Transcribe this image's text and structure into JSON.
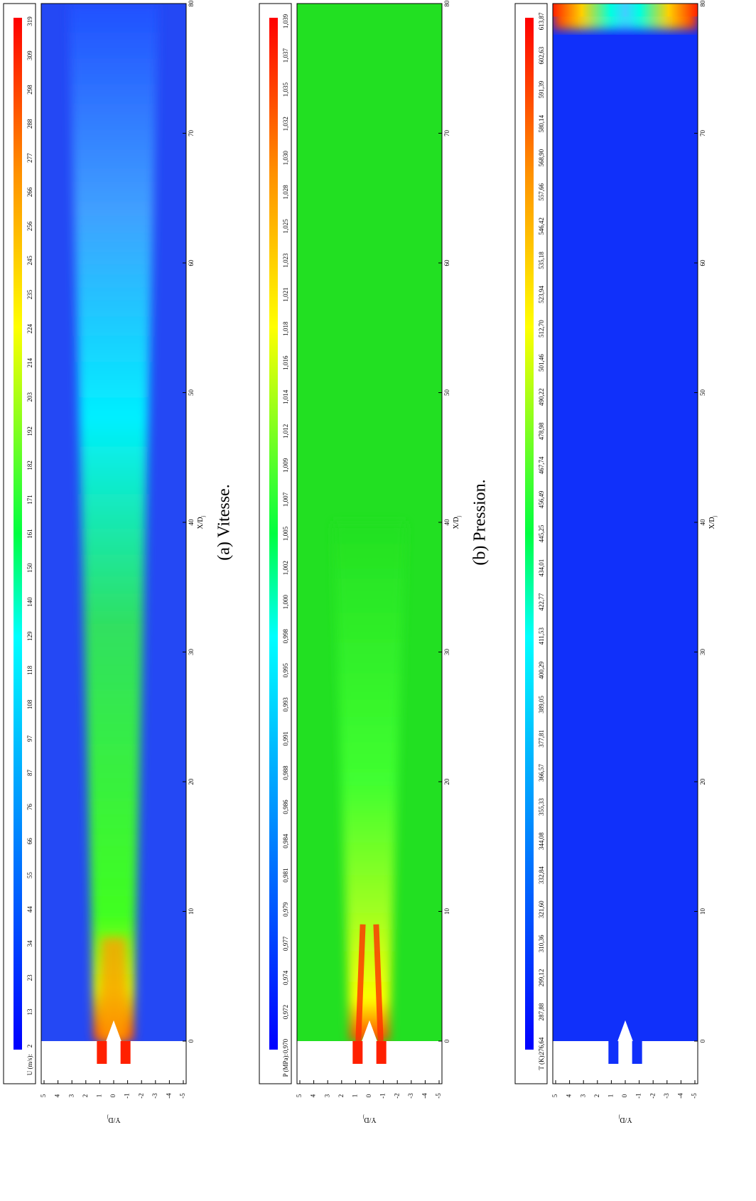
{
  "panels": [
    {
      "caption": "(a) Vitesse.",
      "colorbar_label": "U (m/s):",
      "colorbar_ticks": [
        "2",
        "13",
        "23",
        "34",
        "44",
        "55",
        "66",
        "76",
        "87",
        "97",
        "108",
        "118",
        "129",
        "140",
        "150",
        "161",
        "171",
        "182",
        "192",
        "203",
        "214",
        "224",
        "235",
        "245",
        "256",
        "266",
        "277",
        "288",
        "298",
        "309",
        "319"
      ],
      "xticks": [
        0,
        10,
        20,
        30,
        40,
        50,
        60,
        70,
        80
      ],
      "yticks": [
        5,
        4,
        3,
        2,
        1,
        0,
        -1,
        -2,
        -3,
        -4,
        -5
      ],
      "xlabel": "X/D",
      "xlabel_sub": "j",
      "ylabel": "Y/D",
      "ylabel_sub": "j"
    },
    {
      "caption": "(b) Pression.",
      "colorbar_label": "P (MPa):",
      "colorbar_ticks": [
        "0,970",
        "0,972",
        "0,974",
        "0,977",
        "0,979",
        "0,981",
        "0,984",
        "0,986",
        "0,988",
        "0,991",
        "0,993",
        "0,995",
        "0,998",
        "1,000",
        "1,002",
        "1,005",
        "1,007",
        "1,009",
        "1,012",
        "1,014",
        "1,016",
        "1,018",
        "1,021",
        "1,023",
        "1,025",
        "1,028",
        "1,030",
        "1,032",
        "1,035",
        "1,037",
        "1,039"
      ],
      "xticks": [
        0,
        10,
        20,
        30,
        40,
        50,
        60,
        70,
        80
      ],
      "yticks": [
        5,
        4,
        3,
        2,
        1,
        0,
        -1,
        -2,
        -3,
        -4,
        -5
      ],
      "xlabel": "X/D",
      "xlabel_sub": "j",
      "ylabel": "Y/D",
      "ylabel_sub": "j"
    },
    {
      "colorbar_label": "T (K):",
      "colorbar_ticks": [
        "276,64",
        "287,88",
        "299,12",
        "310,36",
        "321,60",
        "332,84",
        "344,08",
        "355,33",
        "366,57",
        "377,81",
        "389,05",
        "400,29",
        "411,53",
        "422,77",
        "434,01",
        "445,25",
        "456,49",
        "467,74",
        "478,98",
        "490,22",
        "501,46",
        "512,70",
        "523,94",
        "535,18",
        "546,42",
        "557,66",
        "568,90",
        "580,14",
        "591,39",
        "602,63",
        "613,87"
      ],
      "xticks": [
        0,
        10,
        20,
        30,
        40,
        50,
        60,
        70,
        80
      ],
      "yticks": [
        5,
        4,
        3,
        2,
        1,
        0,
        -1,
        -2,
        -3,
        -4,
        -5
      ],
      "xlabel": "X/D",
      "xlabel_sub": "j",
      "ylabel": "Y/D",
      "ylabel_sub": "j"
    }
  ]
}
